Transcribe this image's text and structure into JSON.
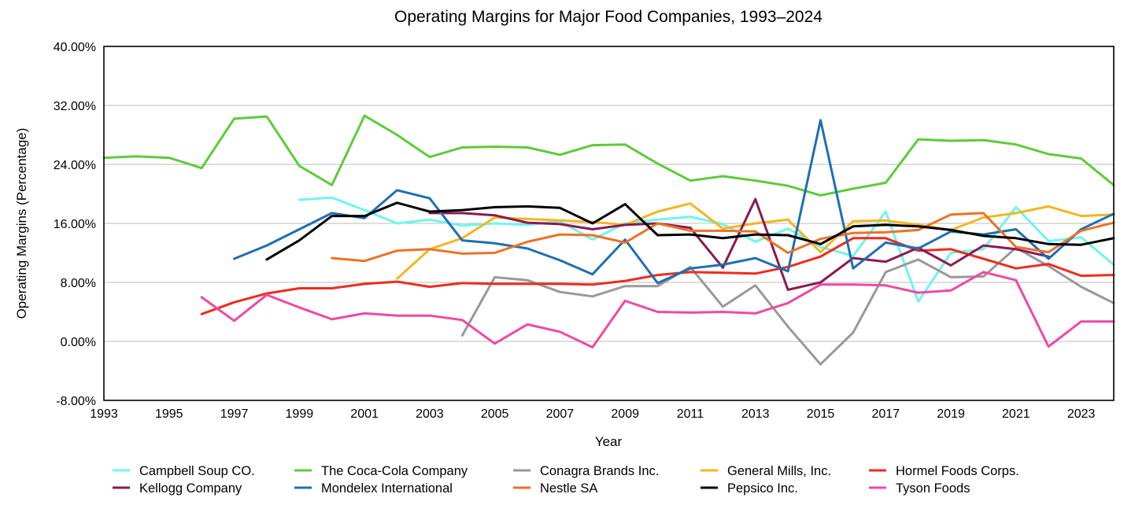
{
  "chart_data": {
    "type": "line",
    "title": "Operating Margins for Major Food Companies, 1993–2024",
    "xlabel": "Year",
    "ylabel": "Operating Margins (Percentage)",
    "xlim": [
      1993,
      2024
    ],
    "ylim": [
      -8,
      40
    ],
    "x_ticks": [
      "1993",
      "1995",
      "1997",
      "1999",
      "2001",
      "2003",
      "2005",
      "2007",
      "2009",
      "2011",
      "2013",
      "2015",
      "2017",
      "2019",
      "2021",
      "2023"
    ],
    "y_ticks": [
      "40.00%",
      "32.00%",
      "24.00%",
      "16.00%",
      "8.00%",
      "0.00%",
      "-8.00%"
    ],
    "grid": true,
    "legend_position": "bottom",
    "series": [
      {
        "name": "Campbell Soup CO.",
        "color": "#6ff5ec",
        "start": 1999,
        "values": [
          19.2,
          19.5,
          17.8,
          16.0,
          16.5,
          15.7,
          16.0,
          15.8,
          16.3,
          13.8,
          16.0,
          16.5,
          16.9,
          15.9,
          13.5,
          15.3,
          12.8,
          11.6,
          17.6,
          5.4,
          12.0,
          12.5,
          18.2,
          13.6,
          14.1,
          10.4
        ]
      },
      {
        "name": "The Coca-Cola Company",
        "color": "#5dcb39",
        "start": 1993,
        "values": [
          24.9,
          25.1,
          24.9,
          23.5,
          30.2,
          30.5,
          23.8,
          21.2,
          30.6,
          28.0,
          25.0,
          26.3,
          26.4,
          26.3,
          25.3,
          26.6,
          26.7,
          24.1,
          21.8,
          22.4,
          21.8,
          21.1,
          19.8,
          20.7,
          21.5,
          27.4,
          27.2,
          27.3,
          26.7,
          25.4,
          24.8,
          21.2
        ]
      },
      {
        "name": "Conagra Brands Inc.",
        "color": "#999999",
        "start": 2004,
        "values": [
          0.8,
          8.7,
          8.3,
          6.7,
          6.1,
          7.5,
          7.5,
          10.1,
          4.7,
          7.6,
          2.0,
          -3.1,
          1.2,
          9.4,
          11.1,
          8.7,
          8.8,
          12.7,
          10.2,
          7.4,
          5.2
        ]
      },
      {
        "name": "General Mills, Inc.",
        "color": "#f4b521",
        "start": 2002,
        "values": [
          8.5,
          12.5,
          14.0,
          16.8,
          16.6,
          16.4,
          16.2,
          15.8,
          17.6,
          18.7,
          15.3,
          16.0,
          16.5,
          12.1,
          16.3,
          16.4,
          15.8,
          15.1,
          16.8,
          17.4,
          18.3,
          17.0,
          17.2
        ]
      },
      {
        "name": "Hormel Foods Corps.",
        "color": "#ef2b1e",
        "start": 1996,
        "values": [
          3.7,
          5.3,
          6.5,
          7.2,
          7.2,
          7.8,
          8.1,
          7.4,
          7.9,
          7.8,
          7.8,
          7.8,
          7.7,
          8.2,
          9.0,
          9.4,
          9.3,
          9.2,
          10.1,
          11.5,
          14.0,
          14.0,
          12.3,
          12.5,
          11.2,
          9.9,
          10.5,
          8.9,
          9.0
        ]
      },
      {
        "name": "Kellogg Company",
        "color": "#8b1a52",
        "start": 2003,
        "values": [
          17.4,
          17.4,
          17.1,
          16.1,
          15.9,
          15.2,
          15.8,
          16.0,
          15.4,
          10.0,
          19.3,
          7.0,
          8.0,
          11.3,
          10.8,
          12.7,
          10.3,
          13.0,
          12.5,
          11.5
        ]
      },
      {
        "name": "Mondelex International",
        "color": "#1f6fb2",
        "start": 1997,
        "values": [
          11.2,
          13.0,
          15.2,
          17.4,
          16.7,
          20.5,
          19.4,
          13.7,
          13.3,
          12.6,
          11.0,
          9.1,
          13.8,
          7.9,
          9.9,
          10.4,
          11.3,
          9.5,
          30.0,
          9.9,
          13.4,
          12.6,
          14.9,
          14.5,
          15.2,
          11.2,
          15.2,
          17.3
        ]
      },
      {
        "name": "Nestle SA",
        "color": "#eb7325",
        "start": 2000,
        "values": [
          11.3,
          10.9,
          12.3,
          12.5,
          11.9,
          12.0,
          13.5,
          14.5,
          14.4,
          13.4,
          16.0,
          15.0,
          15.0,
          14.9,
          12.0,
          13.9,
          14.7,
          14.8,
          15.1,
          17.2,
          17.4,
          12.8,
          12.1,
          15.0,
          16.1
        ]
      },
      {
        "name": "Pepsico Inc.",
        "color": "#000000",
        "start": 1998,
        "values": [
          11.1,
          13.7,
          17.0,
          17.0,
          18.8,
          17.6,
          17.8,
          18.2,
          18.3,
          18.1,
          16.0,
          18.6,
          14.4,
          14.5,
          14.0,
          14.5,
          14.4,
          13.2,
          15.6,
          15.8,
          15.6,
          15.1,
          14.3,
          14.0,
          13.2,
          13.1,
          14.0
        ]
      },
      {
        "name": "Tyson Foods",
        "color": "#ee49a5",
        "start": 1996,
        "values": [
          6.0,
          2.8,
          6.3,
          4.6,
          3.0,
          3.8,
          3.5,
          3.5,
          2.9,
          -0.3,
          2.3,
          1.3,
          -0.8,
          5.5,
          4.0,
          3.9,
          4.0,
          3.8,
          5.2,
          7.7,
          7.7,
          7.6,
          6.6,
          6.9,
          9.4,
          8.3,
          -0.7,
          2.7,
          2.7
        ]
      }
    ]
  }
}
